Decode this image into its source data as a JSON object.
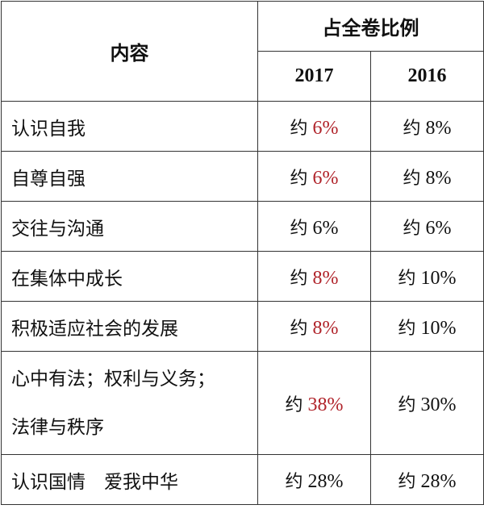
{
  "header": {
    "content_label": "内容",
    "ratio_label": "占全卷比例",
    "years": [
      "2017",
      "2016"
    ]
  },
  "prefix": "约",
  "colors": {
    "highlight": "#b0232a",
    "text": "#111111",
    "border": "#333333"
  },
  "rows": [
    {
      "item": "认识自我",
      "y2017": "6%",
      "y2017_highlight": true,
      "y2016": "8%"
    },
    {
      "item": "自尊自强",
      "y2017": "6%",
      "y2017_highlight": true,
      "y2016": "8%"
    },
    {
      "item": "交往与沟通",
      "y2017": "6%",
      "y2017_highlight": false,
      "y2016": "6%"
    },
    {
      "item": "在集体中成长",
      "y2017": "8%",
      "y2017_highlight": true,
      "y2016": "10%"
    },
    {
      "item": "积极适应社会的发展",
      "y2017": "8%",
      "y2017_highlight": true,
      "y2016": "10%"
    },
    {
      "item_lines": [
        "心中有法；权利与义务；",
        "法律与秩序"
      ],
      "y2017": "38%",
      "y2017_highlight": true,
      "y2016": "30%"
    },
    {
      "item": "认识国情　爱我中华",
      "y2017": "28%",
      "y2017_highlight": false,
      "y2016": "28%"
    }
  ]
}
